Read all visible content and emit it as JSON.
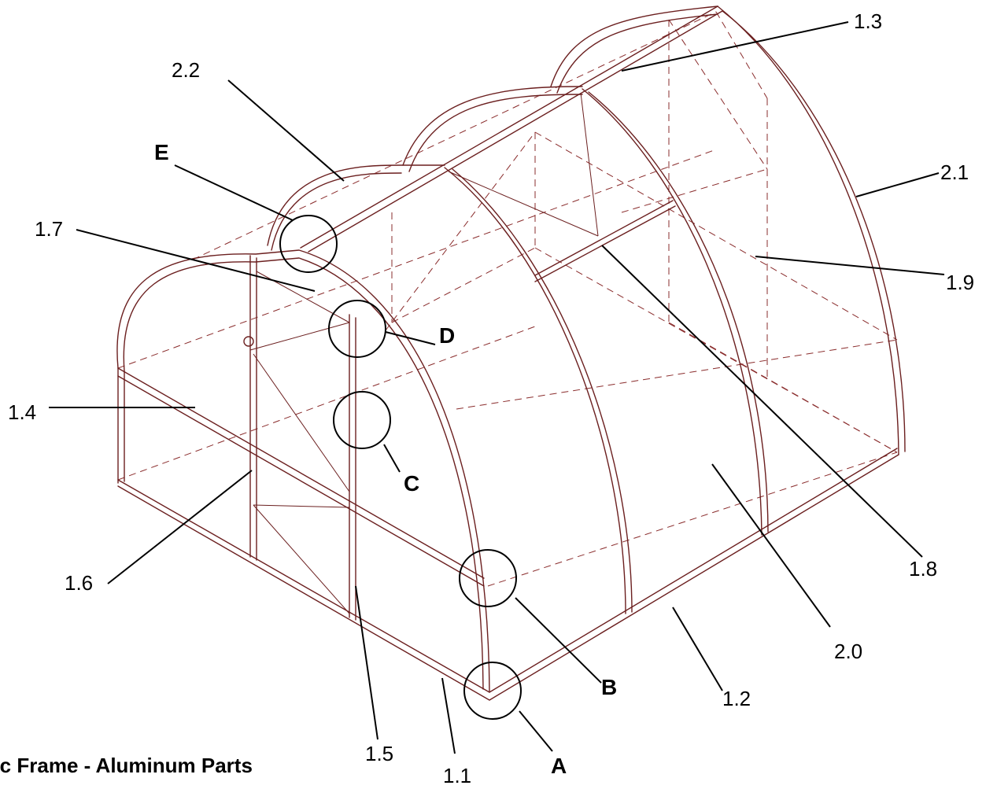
{
  "caption": "sic Frame - Aluminum Parts",
  "part_labels": [
    "1.3",
    "2.2",
    "E",
    "2.1",
    "1.7",
    "1.9",
    "D",
    "1.4",
    "C",
    "1.6",
    "1.8",
    "B",
    "2.0",
    "1.2",
    "1.5",
    "1.1",
    "A"
  ],
  "detail_markers": [
    "E",
    "D",
    "C",
    "B",
    "A"
  ],
  "colors": {
    "frame": "#6b1f1f",
    "hidden_lines": "#8a2c2c",
    "labels": "#000000"
  }
}
